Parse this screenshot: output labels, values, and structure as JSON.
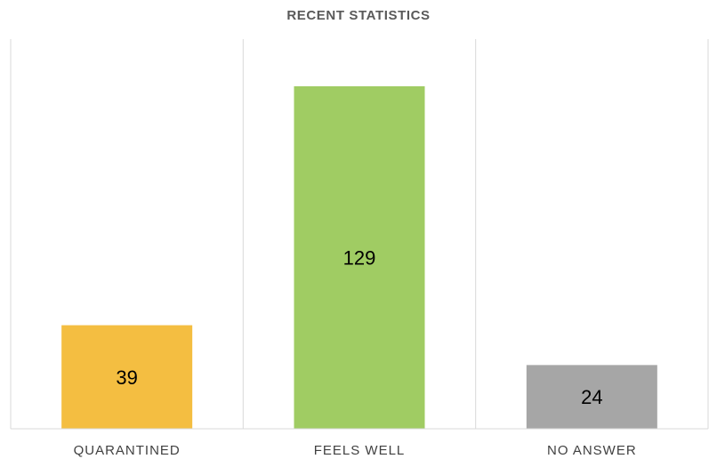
{
  "chart_data": {
    "type": "bar",
    "title": "RECENT STATISTICS",
    "xlabel": "",
    "ylabel": "",
    "categories": [
      "QUARANTINED",
      "FEELS WELL",
      "NO ANSWER"
    ],
    "values": [
      39,
      129,
      24
    ],
    "colors": [
      "#F4BE41",
      "#A0CC63",
      "#A6A6A6"
    ],
    "data_labels": [
      "39",
      "129",
      "24"
    ],
    "ylim": [
      0,
      140
    ],
    "grid": false,
    "legend": "none"
  }
}
